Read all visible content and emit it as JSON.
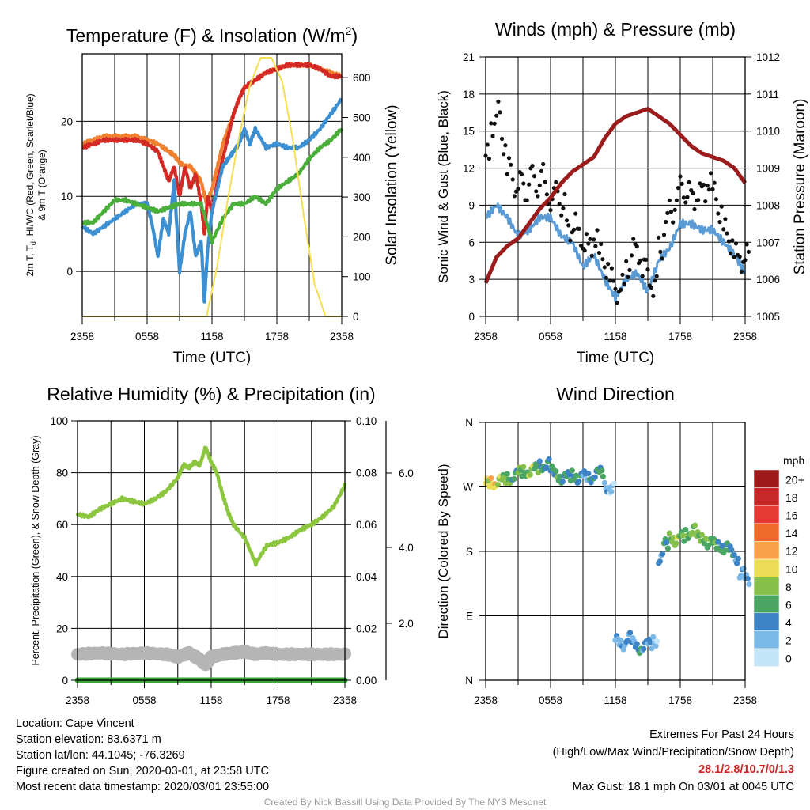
{
  "chart_data": [
    {
      "id": "temp",
      "type": "line",
      "title": "Temperature (F) & Insolation (W/m",
      "title_sup": "2",
      "title_close": ")",
      "xlabel": "Time (UTC)",
      "ylabel_lines": [
        "2m T, T",
        "d",
        ", HI/WC (Red, Green, Scarlet/Blue)",
        "& 9m T (Orange)"
      ],
      "y2label": "Solar Insolation (Yellow)",
      "x_ticks": [
        "2358",
        "0558",
        "1158",
        "1758",
        "2358"
      ],
      "ylim": [
        -6,
        29
      ],
      "y_ticks": [
        0,
        10,
        20
      ],
      "y2lim": [
        0,
        660
      ],
      "y2_ticks": [
        0,
        100,
        200,
        300,
        400,
        500,
        600
      ],
      "grid": true,
      "series": [
        {
          "color": "#f08030",
          "axis": "left",
          "x": [
            0,
            1,
            2,
            3,
            4,
            5,
            6,
            7,
            8,
            8.5,
            9,
            9.5,
            10,
            10.5,
            11,
            11.5,
            12,
            12.5,
            13,
            13.5,
            14,
            14.5,
            15,
            16,
            17,
            18,
            19,
            20,
            21,
            22,
            23,
            24
          ],
          "values": [
            17,
            17.5,
            18,
            18,
            18,
            18,
            17.5,
            17,
            16,
            15.5,
            14.5,
            14,
            14,
            13,
            12,
            9,
            11,
            14,
            17,
            19,
            21,
            23,
            24.5,
            25.5,
            26.5,
            27,
            27.5,
            27.5,
            27.5,
            27,
            26.5,
            26
          ]
        },
        {
          "color": "#d42a25",
          "axis": "left",
          "x": [
            0,
            1,
            2,
            3,
            4,
            5,
            6,
            7,
            7.5,
            8,
            8.5,
            9,
            9.5,
            10,
            10.5,
            11,
            11.3,
            11.6,
            12,
            12.5,
            13,
            13.5,
            14,
            14.5,
            15,
            16,
            17,
            18,
            19,
            20,
            21,
            22,
            23,
            24
          ],
          "values": [
            16.5,
            17,
            17.5,
            17.5,
            17.5,
            17.5,
            17,
            16,
            14,
            12,
            14,
            10,
            14,
            11,
            13,
            9,
            5,
            10,
            8,
            12,
            15,
            18,
            21,
            23,
            24.5,
            25.5,
            26.5,
            27,
            27.5,
            27.5,
            27.5,
            27,
            26,
            26
          ]
        },
        {
          "color": "#3c8fd0",
          "axis": "left",
          "x": [
            0,
            1,
            2,
            3,
            4,
            5,
            6,
            6.5,
            7,
            7.5,
            8,
            8.5,
            9,
            9.5,
            10,
            10.5,
            11,
            11.3,
            11.6,
            12,
            12.5,
            13,
            13.5,
            14,
            14.5,
            15,
            15.5,
            16,
            17,
            18,
            19,
            20,
            21,
            22,
            23,
            24
          ],
          "values": [
            6,
            5,
            6,
            7,
            8,
            9,
            9,
            6,
            2,
            7,
            5,
            12,
            0,
            5,
            8,
            2,
            4,
            -4,
            3,
            8,
            11,
            14,
            15,
            16,
            17,
            19,
            17,
            19,
            16.5,
            17,
            16.5,
            16.5,
            17.5,
            19,
            21,
            23
          ]
        },
        {
          "color": "#4aae3a",
          "axis": "left",
          "x": [
            0,
            1,
            2,
            3,
            4,
            5,
            6,
            7,
            8,
            9,
            10,
            11,
            12,
            13,
            14,
            15,
            16,
            17,
            18,
            19,
            20,
            21,
            22,
            23,
            24
          ],
          "values": [
            6.5,
            6.5,
            8,
            9.5,
            9.5,
            9,
            8.5,
            8,
            8.5,
            9,
            9,
            9,
            4,
            7,
            9,
            9,
            10,
            9,
            11,
            12,
            13,
            15,
            16.5,
            17.5,
            19
          ]
        },
        {
          "color": "#f5df50",
          "axis": "right",
          "x": [
            0,
            10.5,
            11.5,
            12.5,
            13.5,
            14.5,
            15.5,
            16.5,
            17.5,
            18.5,
            19.5,
            20.5,
            21.5,
            22.5,
            23,
            24
          ],
          "values": [
            0,
            0,
            0,
            130,
            300,
            450,
            580,
            650,
            650,
            590,
            440,
            250,
            80,
            0,
            0,
            0
          ]
        }
      ]
    },
    {
      "id": "wind",
      "type": "line",
      "title": "Winds (mph) & Pressure (mb)",
      "xlabel": "Time (UTC)",
      "ylabel": "Sonic Wind & Gust (Blue, Black)",
      "y2label": "Station Pressure (Maroon)",
      "x_ticks": [
        "2358",
        "0558",
        "1158",
        "1758",
        "2358"
      ],
      "ylim": [
        0,
        21
      ],
      "y_ticks": [
        0,
        3,
        6,
        9,
        12,
        15,
        18,
        21
      ],
      "y2lim": [
        1005,
        1012
      ],
      "y2_ticks": [
        1005,
        1006,
        1007,
        1008,
        1009,
        1010,
        1011,
        1012
      ],
      "grid": true,
      "series": [
        {
          "color": "#5b9bd5",
          "kind": "line",
          "axis": "left",
          "x": [
            0,
            1,
            2,
            3,
            4,
            5,
            6,
            7,
            8,
            9,
            10,
            11,
            12,
            13,
            14,
            15,
            16,
            17,
            18,
            19,
            20,
            21,
            22,
            23,
            24
          ],
          "values": [
            8,
            9,
            8,
            6.5,
            7,
            8,
            8,
            6.5,
            6,
            4,
            5,
            3,
            1.5,
            3,
            3.5,
            2,
            4.5,
            5.5,
            7.5,
            7.5,
            7,
            7,
            6,
            5,
            3.5
          ]
        },
        {
          "color": "#111111",
          "kind": "dots",
          "axis": "left",
          "x": [
            0,
            0.5,
            1,
            1.5,
            2,
            2.5,
            3,
            3.5,
            4,
            4.5,
            5,
            5.5,
            6,
            6.5,
            7,
            7.5,
            8,
            8.5,
            9,
            9.5,
            10,
            10.5,
            11,
            11.5,
            12,
            12.5,
            13,
            13.5,
            14,
            14.5,
            15,
            15.5,
            16,
            16.5,
            17,
            17.5,
            18,
            18.5,
            19,
            19.5,
            20,
            20.5,
            21,
            21.5,
            22,
            22.5,
            23,
            23.5,
            24
          ],
          "values": [
            13,
            15.5,
            16.5,
            14,
            12,
            10.5,
            11,
            10,
            11.5,
            10.5,
            11.5,
            10,
            9.5,
            10,
            9,
            7,
            7.5,
            6.5,
            6,
            5.5,
            6.5,
            5,
            4,
            3,
            2,
            2.5,
            4,
            5.5,
            5,
            4,
            3,
            2.5,
            5.5,
            7.5,
            8.5,
            9.5,
            10.5,
            10,
            9.5,
            10,
            10,
            11,
            10,
            8.5,
            7,
            6,
            5,
            4.5,
            5
          ]
        },
        {
          "color": "#9b1c1c",
          "kind": "line",
          "axis": "right",
          "x": [
            0,
            1,
            2,
            3,
            4,
            5,
            6,
            7,
            8,
            9,
            10,
            11,
            12,
            13,
            14,
            15,
            16,
            17,
            18,
            19,
            20,
            21,
            22,
            23,
            24
          ],
          "values": [
            1005.9,
            1006.6,
            1006.9,
            1007.1,
            1007.5,
            1007.9,
            1008.2,
            1008.6,
            1008.9,
            1009.1,
            1009.3,
            1009.8,
            1010.2,
            1010.4,
            1010.5,
            1010.6,
            1010.4,
            1010.2,
            1009.9,
            1009.6,
            1009.4,
            1009.3,
            1009.2,
            1009,
            1008.6
          ]
        }
      ]
    },
    {
      "id": "rh",
      "type": "line",
      "title": "Relative Humidity (%) & Precipitation (in)",
      "ylabel": "Percent, Precipitation (Green), & Snow Depth (Gray)",
      "x_ticks": [
        "2358",
        "0558",
        "1158",
        "1758",
        "2358"
      ],
      "ylim": [
        0,
        100
      ],
      "y_ticks": [
        0,
        20,
        40,
        60,
        80,
        100
      ],
      "y2_ticks": [
        "0.00",
        "0.02",
        "0.04",
        "0.06",
        "0.08",
        "0.10"
      ],
      "y3_ticks": [
        "2.0",
        "4.0",
        "6.0"
      ],
      "grid": true,
      "series": [
        {
          "color": "#8cc63f",
          "axis": "left",
          "x": [
            0,
            1,
            2,
            3,
            4,
            5,
            6,
            7,
            8,
            9,
            9.5,
            10,
            10.5,
            11,
            11.5,
            12,
            12.5,
            13,
            13.5,
            14,
            15,
            16,
            17,
            18,
            19,
            20,
            21,
            22,
            23,
            24
          ],
          "values": [
            64,
            63,
            66,
            68,
            70,
            69,
            68,
            70,
            73,
            78,
            83,
            82,
            84,
            83,
            90,
            84,
            80,
            72,
            65,
            60,
            55,
            45,
            52,
            53,
            55,
            58,
            60,
            63,
            67,
            75
          ]
        },
        {
          "color": "#b5b5b5",
          "axis": "left",
          "x": [
            0,
            2,
            4,
            6,
            8,
            9,
            10,
            11,
            11.5,
            12,
            13,
            14,
            15,
            16,
            17,
            18,
            20,
            22,
            24
          ],
          "values": [
            10,
            10.5,
            10,
            10.5,
            10,
            9,
            10.5,
            8,
            6,
            9,
            10,
            10.5,
            11,
            10,
            10.5,
            10,
            10,
            10,
            10
          ]
        },
        {
          "color": "#3aa63a",
          "axis": "left",
          "x": [
            0,
            24
          ],
          "values": [
            0,
            0
          ]
        }
      ]
    },
    {
      "id": "dir",
      "type": "scatter",
      "title": "Wind Direction",
      "ylabel": "Direction (Colored By Speed)",
      "x_ticks": [
        "2358",
        "0558",
        "1158",
        "1758",
        "2358"
      ],
      "y_ticks": [
        "N",
        "E",
        "S",
        "W",
        "N"
      ],
      "ylim": [
        0,
        360
      ],
      "grid": true,
      "legend_unit": "mph",
      "legend_labels": [
        "20+",
        "18",
        "16",
        "14",
        "12",
        "10",
        "8",
        "6",
        "4",
        "2",
        "0"
      ],
      "legend_colors": [
        "#9e1a1a",
        "#c62828",
        "#e53935",
        "#f06a2a",
        "#f8a04a",
        "#ebdd55",
        "#86c04a",
        "#4aa564",
        "#3d84c6",
        "#7ab8e8",
        "#c4e4f8"
      ],
      "x": [
        0,
        0.5,
        1,
        1.5,
        2,
        2.5,
        3,
        3.5,
        4,
        4.5,
        5,
        5.5,
        6,
        6.5,
        7,
        7.5,
        8,
        8.5,
        9,
        9.5,
        10,
        10.5,
        11,
        11.5,
        12,
        12.5,
        13,
        13.5,
        14,
        14.5,
        15,
        15.5,
        16,
        16.5,
        17,
        17.5,
        18,
        18.5,
        19,
        19.5,
        20,
        20.5,
        21,
        21.5,
        22,
        22.5,
        23,
        23.5,
        24
      ],
      "values": [
        275,
        276,
        278,
        280,
        282,
        286,
        290,
        292,
        292,
        295,
        300,
        302,
        292,
        286,
        282,
        284,
        287,
        282,
        285,
        283,
        288,
        290,
        270,
        268,
        55,
        50,
        60,
        52,
        45,
        48,
        50,
        55,
        170,
        190,
        200,
        195,
        200,
        205,
        210,
        200,
        198,
        192,
        190,
        188,
        185,
        180,
        170,
        150,
        140
      ],
      "speeds": [
        9,
        10,
        8,
        7,
        6,
        5,
        7,
        6,
        8,
        6,
        5,
        4,
        5,
        6,
        4,
        4,
        5,
        4,
        3,
        4,
        4,
        5,
        2,
        1,
        2,
        2,
        3,
        2,
        4,
        3,
        2,
        1,
        3,
        5,
        7,
        8,
        6,
        6,
        7,
        7,
        6,
        6,
        6,
        5,
        5,
        4,
        3,
        2,
        2
      ]
    }
  ],
  "location": "Location: Cape Vincent",
  "elevation": "Station elevation: 83.6371 m",
  "latlon": "Station lat/lon: 44.1045; -76.3269",
  "created": "Figure created on Sun, 2020-03-01, at 23:58 UTC",
  "recent": "Most recent data timestamp: 2020/03/01 23:55:00",
  "extremes_title": "Extremes For Past 24 Hours",
  "extremes_sub": "(High/Low/Max Wind/Precipitation/Snow Depth)",
  "extremes_values": "28.1/2.8/10.7/0/1.3",
  "max_gust": "Max Gust: 18.1 mph On 03/01 at 0045 UTC",
  "credit": "Created By Nick Bassill Using Data Provided By The NYS Mesonet"
}
